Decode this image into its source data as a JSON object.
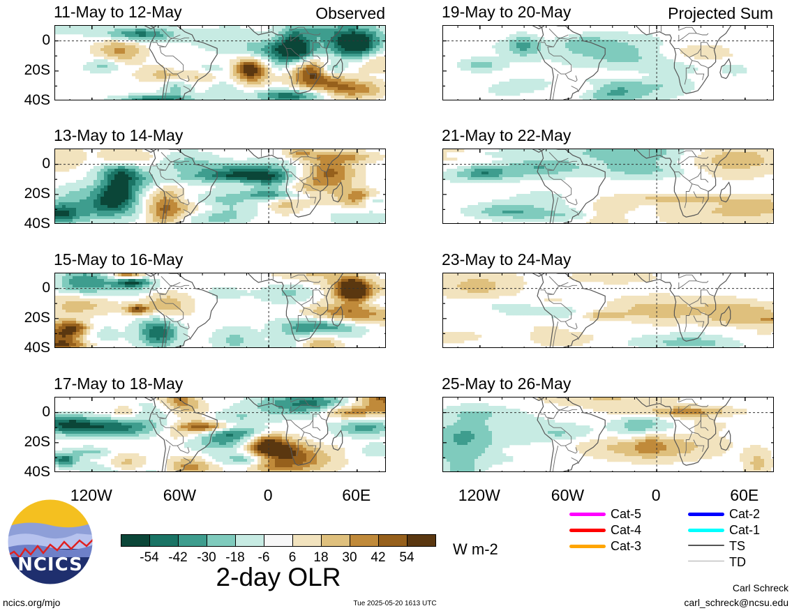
{
  "panels": [
    {
      "title": "11-May to 12-May",
      "tag": "Observed",
      "col": 0,
      "row": 0,
      "seed": 11
    },
    {
      "title": "13-May to 14-May",
      "tag": "",
      "col": 0,
      "row": 1,
      "seed": 13
    },
    {
      "title": "15-May to 16-May",
      "tag": "",
      "col": 0,
      "row": 2,
      "seed": 15
    },
    {
      "title": "17-May to 18-May",
      "tag": "",
      "col": 0,
      "row": 3,
      "seed": 17
    },
    {
      "title": "19-May to 20-May",
      "tag": "Projected Sum",
      "col": 1,
      "row": 0,
      "seed": 19
    },
    {
      "title": "21-May to 22-May",
      "tag": "",
      "col": 1,
      "row": 1,
      "seed": 21
    },
    {
      "title": "23-May to 24-May",
      "tag": "",
      "col": 1,
      "row": 2,
      "seed": 23
    },
    {
      "title": "25-May to 26-May",
      "tag": "",
      "col": 1,
      "row": 3,
      "seed": 25
    }
  ],
  "y_ticks": [
    "0",
    "20S",
    "40S"
  ],
  "x_ticks": [
    "120W",
    "60W",
    "0",
    "60E"
  ],
  "colorbar": {
    "title": "2-day OLR",
    "units": "W m-2",
    "labels": [
      "-54",
      "-42",
      "-30",
      "-18",
      "-6",
      "6",
      "18",
      "30",
      "42",
      "54"
    ],
    "colors": [
      "#0b4638",
      "#1a7465",
      "#3e9d8e",
      "#7fcbbd",
      "#c7ebe3",
      "#f7f7f7",
      "#f2e3be",
      "#dfc07d",
      "#c08a3a",
      "#96601c",
      "#5a3710"
    ]
  },
  "legend": [
    {
      "label": "Cat-5",
      "color": "#ff00ff"
    },
    {
      "label": "Cat-4",
      "color": "#ff0000"
    },
    {
      "label": "Cat-3",
      "color": "#ffa500"
    },
    {
      "label": "Cat-2",
      "color": "#0000ff"
    },
    {
      "label": "Cat-1",
      "color": "#00ffff"
    },
    {
      "label": "TS",
      "color": "#555555"
    },
    {
      "label": "TD",
      "color": "#aaaaaa"
    }
  ],
  "logo_text": "NCICS",
  "footer": {
    "website": "ncics.org/mjo",
    "timestamp": "Tue 2025-05-20 1613 UTC",
    "author": "Carl Schreck",
    "email": "carl_schreck@ncsu.edu"
  }
}
